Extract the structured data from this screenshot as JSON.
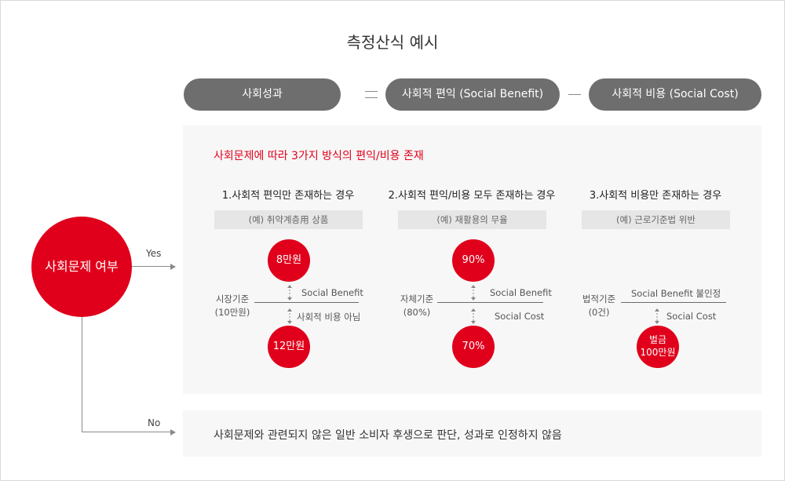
{
  "title": "측정산식 예시",
  "formula": {
    "result": "사회성과",
    "benefit": "사회적 편익 (Social Benefit)",
    "cost": "사회적 비용 (Social Cost)"
  },
  "decision": {
    "label": "사회문제 여부",
    "yes": "Yes",
    "no": "No"
  },
  "heading": "사회문제에 따라 3가지 방식의 편익/비용 존재",
  "cases": [
    {
      "title": "1.사회적 편익만 존재하는 경우",
      "example": "(예) 취약계층用 상품",
      "baseline": "시장기준\n(10만원)",
      "top_circle": "8만원",
      "bottom_circle": "12만원",
      "top_label": "Social Benefit",
      "bottom_label": "사회적 비용 아님"
    },
    {
      "title": "2.사회적 편익/비용 모두 존재하는 경우",
      "example": "(예) 재활용의 무율",
      "baseline": "자체기준\n(80%)",
      "top_circle": "90%",
      "bottom_circle": "70%",
      "top_label": "Social Benefit",
      "bottom_label": "Social Cost"
    },
    {
      "title": "3.사회적 비용만 존재하는 경우",
      "example": "(예) 근로기준법 위반",
      "baseline": "법적기준\n(0건)",
      "top_label": "Social Benefit 불인정",
      "bottom_circle": "벌금\n100만원",
      "bottom_label": "Social Cost"
    }
  ],
  "no_text": "사회문제와 관련되지 않은 일반 소비자 후생으로 판단, 성과로 인정하지 않음",
  "colors": {
    "accent": "#e0001b",
    "pill": "#6e6e6e",
    "panel": "#f7f7f7"
  }
}
